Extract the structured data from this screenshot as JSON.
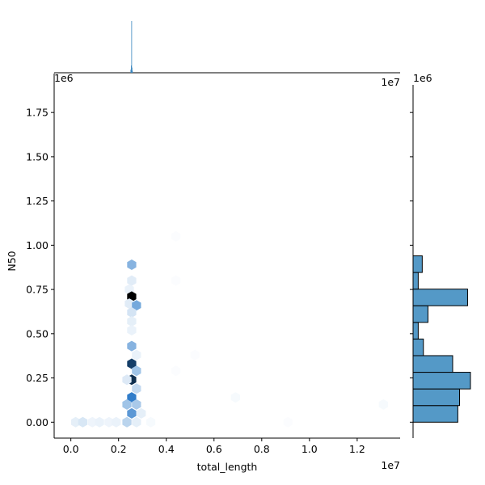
{
  "chart_data": {
    "type": "hexbin-jointplot",
    "xlabel": "total_length",
    "ylabel": "N50",
    "x_offset_label": "1e7",
    "y_offset_label": "1e6",
    "x_offset_label_top": "1e7",
    "y_offset_label_top": "1e6",
    "y_offset_label_right": "1e6",
    "xlim": [
      -0.07,
      1.38
    ],
    "ylim": [
      -0.09,
      1.97
    ],
    "x_ticks": [
      0.0,
      0.2,
      0.4,
      0.6,
      0.8,
      1.0,
      1.2
    ],
    "x_tick_labels": [
      "0.0",
      "0.2",
      "0.4",
      "0.6",
      "0.8",
      "1.0",
      "1.2"
    ],
    "y_ticks": [
      0.0,
      0.25,
      0.5,
      0.75,
      1.0,
      1.25,
      1.5,
      1.75
    ],
    "y_tick_labels": [
      "0.00",
      "0.25",
      "0.50",
      "0.75",
      "1.00",
      "1.25",
      "1.50",
      "1.75"
    ],
    "hex_color_scale": [
      "#ffffff",
      "#2878c8",
      "#000000"
    ],
    "hexbins": [
      {
        "x": 0.255,
        "y": 0.89,
        "density": 0.28
      },
      {
        "x": 0.255,
        "y": 0.8,
        "density": 0.07
      },
      {
        "x": 0.245,
        "y": 0.75,
        "density": 0.05
      },
      {
        "x": 0.255,
        "y": 0.71,
        "density": 1.0
      },
      {
        "x": 0.245,
        "y": 0.67,
        "density": 0.07
      },
      {
        "x": 0.275,
        "y": 0.66,
        "density": 0.32
      },
      {
        "x": 0.255,
        "y": 0.62,
        "density": 0.1
      },
      {
        "x": 0.255,
        "y": 0.57,
        "density": 0.06
      },
      {
        "x": 0.255,
        "y": 0.52,
        "density": 0.05
      },
      {
        "x": 0.255,
        "y": 0.43,
        "density": 0.28
      },
      {
        "x": 0.275,
        "y": 0.38,
        "density": 0.05
      },
      {
        "x": 0.255,
        "y": 0.33,
        "density": 0.74
      },
      {
        "x": 0.275,
        "y": 0.29,
        "density": 0.22
      },
      {
        "x": 0.255,
        "y": 0.24,
        "density": 0.8
      },
      {
        "x": 0.235,
        "y": 0.24,
        "density": 0.08
      },
      {
        "x": 0.275,
        "y": 0.19,
        "density": 0.14
      },
      {
        "x": 0.255,
        "y": 0.14,
        "density": 0.48
      },
      {
        "x": 0.235,
        "y": 0.1,
        "density": 0.22
      },
      {
        "x": 0.275,
        "y": 0.1,
        "density": 0.2
      },
      {
        "x": 0.255,
        "y": 0.05,
        "density": 0.38
      },
      {
        "x": 0.295,
        "y": 0.05,
        "density": 0.06
      },
      {
        "x": 0.235,
        "y": 0.0,
        "density": 0.16
      },
      {
        "x": 0.275,
        "y": 0.0,
        "density": 0.06
      },
      {
        "x": 0.02,
        "y": 0.0,
        "density": 0.06
      },
      {
        "x": 0.05,
        "y": 0.0,
        "density": 0.09
      },
      {
        "x": 0.09,
        "y": 0.0,
        "density": 0.04
      },
      {
        "x": 0.12,
        "y": 0.0,
        "density": 0.05
      },
      {
        "x": 0.16,
        "y": 0.0,
        "density": 0.04
      },
      {
        "x": 0.19,
        "y": 0.0,
        "density": 0.05
      },
      {
        "x": 0.335,
        "y": 0.0,
        "density": 0.02
      },
      {
        "x": 0.44,
        "y": 1.05,
        "density": 0.01
      },
      {
        "x": 0.44,
        "y": 0.8,
        "density": 0.01
      },
      {
        "x": 0.44,
        "y": 0.29,
        "density": 0.01
      },
      {
        "x": 0.52,
        "y": 0.38,
        "density": 0.01
      },
      {
        "x": 0.69,
        "y": 0.14,
        "density": 0.02
      },
      {
        "x": 0.91,
        "y": 0.0,
        "density": 0.01
      },
      {
        "x": 1.31,
        "y": 0.1,
        "density": 0.02
      }
    ],
    "marginal_x": {
      "type": "histogram",
      "description_peak_x": 0.253,
      "bins": [
        {
          "x0": 0.25,
          "x1": 0.252,
          "count_fraction": 0.06
        },
        {
          "x0": 0.252,
          "x1": 0.2535,
          "count_fraction": 0.14
        },
        {
          "x0": 0.2535,
          "x1": 0.255,
          "count_fraction": 1.0
        },
        {
          "x0": 0.255,
          "x1": 0.2565,
          "count_fraction": 0.1
        },
        {
          "x0": 0.2565,
          "x1": 0.258,
          "count_fraction": 0.04
        }
      ]
    },
    "marginal_y": {
      "type": "histogram",
      "bins": [
        {
          "y0": 0.0,
          "y1": 0.094,
          "count_fraction": 0.78
        },
        {
          "y0": 0.094,
          "y1": 0.188,
          "count_fraction": 0.81
        },
        {
          "y0": 0.188,
          "y1": 0.282,
          "count_fraction": 1.0
        },
        {
          "y0": 0.282,
          "y1": 0.376,
          "count_fraction": 0.69
        },
        {
          "y0": 0.376,
          "y1": 0.47,
          "count_fraction": 0.18
        },
        {
          "y0": 0.47,
          "y1": 0.564,
          "count_fraction": 0.09
        },
        {
          "y0": 0.564,
          "y1": 0.658,
          "count_fraction": 0.26
        },
        {
          "y0": 0.658,
          "y1": 0.752,
          "count_fraction": 0.95
        },
        {
          "y0": 0.752,
          "y1": 0.846,
          "count_fraction": 0.09
        },
        {
          "y0": 0.846,
          "y1": 0.94,
          "count_fraction": 0.16
        }
      ]
    },
    "colors": {
      "marginal_fill": "#5499c7",
      "marginal_edge": "#000000",
      "marginal_x_line": "#3a87bf"
    }
  }
}
